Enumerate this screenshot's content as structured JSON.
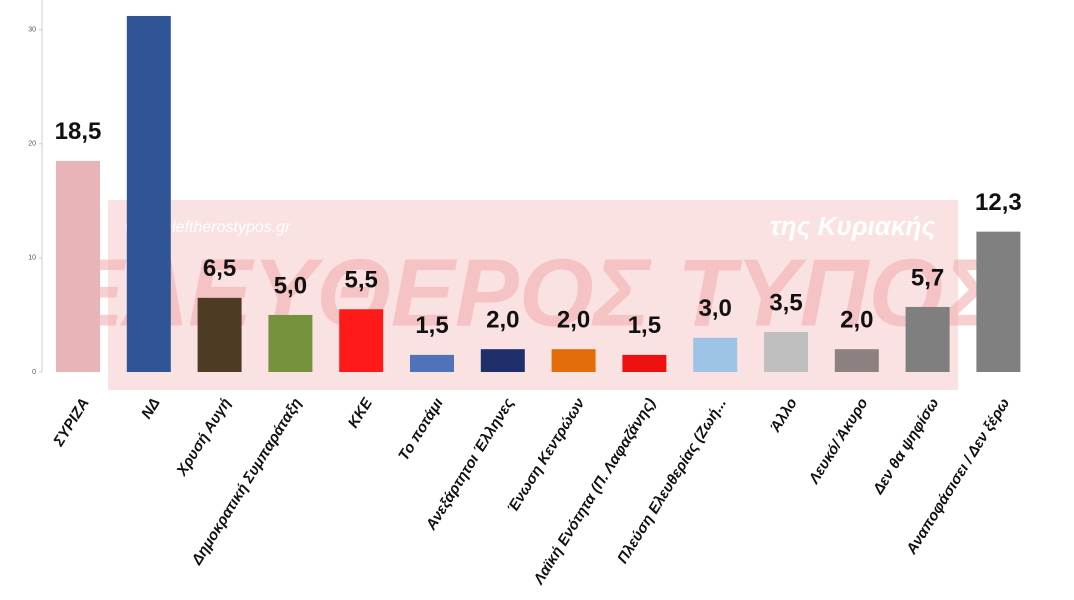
{
  "chart_data": {
    "type": "bar",
    "categories": [
      "ΣΥΡΙΖΑ",
      "ΝΔ",
      "Χρυσή Αυγή",
      "Δημοκρατική Συμπαράταξη",
      "ΚΚΕ",
      "Το ποτάμι",
      "Ανεξάρτητοι Έλληνες",
      "Ένωση Κεντρώων",
      "Λαϊκή Ενότητα (Π. Λαφαζάνης)",
      "Πλεύση Ελευθερίας (Ζωή...",
      "Άλλο",
      "Λευκό/ Άκυρο",
      "Δεν θα ψηφίσω",
      "Αναποφάσισει / Δεν ξέρω"
    ],
    "values": [
      18.5,
      31.2,
      6.5,
      5.0,
      5.5,
      1.5,
      2.0,
      2.0,
      1.5,
      3.0,
      3.5,
      2.0,
      5.7,
      12.3
    ],
    "value_labels": [
      "18,5",
      null,
      "6,5",
      "5,0",
      "5,5",
      "1,5",
      "2,0",
      "2,0",
      "1,5",
      "3,0",
      "3,5",
      "2,0",
      "5,7",
      "12,3"
    ],
    "colors": [
      "#e8b4b8",
      "#2f5597",
      "#4e3b24",
      "#76923c",
      "#ff1a1a",
      "#4f72b8",
      "#1f2f6b",
      "#e46c0a",
      "#ee1111",
      "#9dc3e6",
      "#bfbfbf",
      "#8c8080",
      "#7f7f7f",
      "#808080"
    ],
    "ylim": [
      0,
      32.6
    ],
    "yticks": [
      0,
      10,
      20,
      30
    ],
    "grid": false,
    "watermark": {
      "title": "ΕΛΕΥΘΕΡΟΣ ΤΥΠΟΣ",
      "url": "www.eleftherostypos.gr",
      "edition": "της Κυριακής"
    }
  }
}
